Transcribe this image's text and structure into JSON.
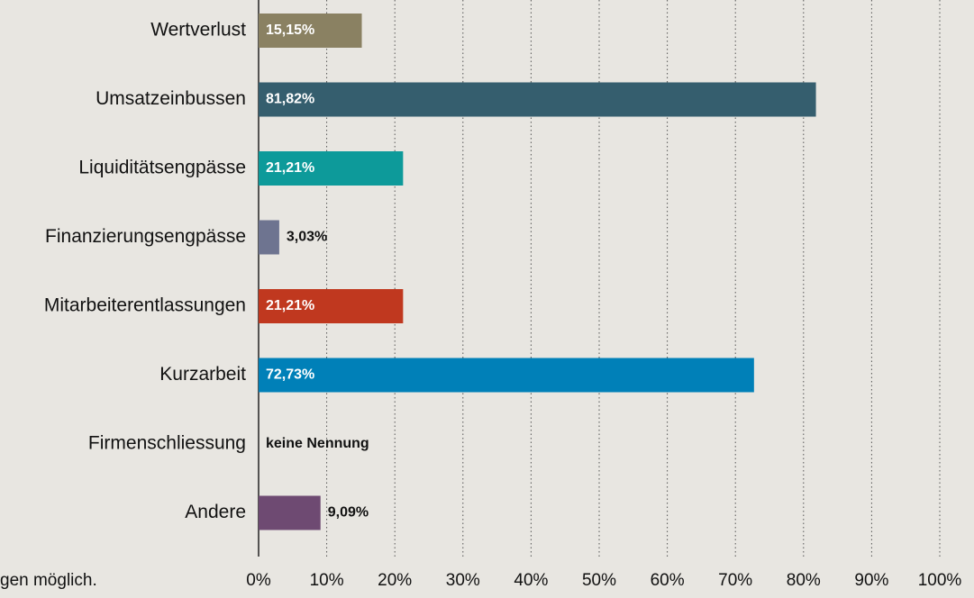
{
  "chart_data": {
    "type": "bar",
    "orientation": "horizontal",
    "categories": [
      "Wertverlust",
      "Umsatzeinbussen",
      "Liquiditätsengpässe",
      "Finanzierungsengpässe",
      "Mitarbeiterentlassungen",
      "Kurzarbeit",
      "Firmenschliessung",
      "Andere"
    ],
    "values": [
      15.15,
      81.82,
      21.21,
      3.03,
      21.21,
      72.73,
      0,
      9.09
    ],
    "value_labels": [
      "15,15%",
      "81,82%",
      "21,21%",
      "3,03%",
      "21,21%",
      "72,73%",
      "keine Nennung",
      "9,09%"
    ],
    "colors": [
      "#8a8162",
      "#355e6e",
      "#0d9a9a",
      "#6e7490",
      "#c0381f",
      "#0080b8",
      "#888888",
      "#6e4a72"
    ],
    "xlim": [
      0,
      100
    ],
    "xticks": [
      {
        "value": 0,
        "label": "0%"
      },
      {
        "value": 10,
        "label": "10%"
      },
      {
        "value": 20,
        "label": "20%"
      },
      {
        "value": 30,
        "label": "30%"
      },
      {
        "value": 40,
        "label": "40%"
      },
      {
        "value": 50,
        "label": "50%"
      },
      {
        "value": 60,
        "label": "60%"
      },
      {
        "value": 70,
        "label": "70%"
      },
      {
        "value": 80,
        "label": "80%"
      },
      {
        "value": 90,
        "label": "90%"
      },
      {
        "value": 100,
        "label": "100%"
      }
    ],
    "grid": true,
    "footnote": "gen möglich."
  }
}
